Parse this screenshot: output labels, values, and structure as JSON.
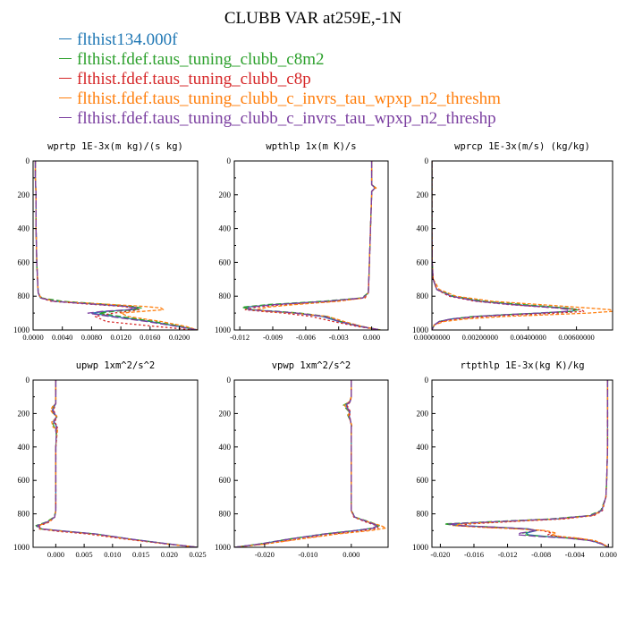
{
  "page": {
    "title": "CLUBB VAR at259E,-1N"
  },
  "legend": [
    {
      "label": "flthist134.000f",
      "color": "#1f77b4"
    },
    {
      "label": "flthist.fdef.taus_tuning_clubb_c8m2",
      "color": "#2ca02c"
    },
    {
      "label": "flthist.fdef.taus_tuning_clubb_c8p",
      "color": "#d62728"
    },
    {
      "label": "flthist.fdef.taus_tuning_clubb_c_invrs_tau_wpxp_n2_threshm",
      "color": "#ff7f0e"
    },
    {
      "label": "flthist.fdef.taus_tuning_clubb_c_invrs_tau_wpxp_n2_threshp",
      "color": "#7b3fa0"
    }
  ],
  "chart_data": [
    {
      "type": "line",
      "title": "wprtp  1E-3x(m kg)/(s kg)",
      "xlim": [
        0.0,
        0.0225
      ],
      "ylim": [
        1000,
        0
      ],
      "xticks": [
        0.0,
        0.004,
        0.008,
        0.012,
        0.016,
        0.02
      ],
      "xtick_labels": [
        "0.0000",
        "0.0040",
        "0.0080",
        "0.0120",
        "0.0160",
        "0.0200"
      ],
      "yticks": [
        0,
        200,
        400,
        600,
        800,
        1000
      ],
      "ytick_labels": [
        "0",
        "200",
        "400",
        "600",
        "800",
        "1000"
      ],
      "y": [
        0,
        100,
        200,
        400,
        600,
        780,
        810,
        830,
        845,
        860,
        870,
        880,
        890,
        900,
        920,
        950,
        980,
        1000
      ],
      "series": [
        {
          "x": [
            0.0003,
            0.0003,
            0.0004,
            0.0004,
            0.0005,
            0.0007,
            0.001,
            0.003,
            0.008,
            0.013,
            0.0145,
            0.0135,
            0.01,
            0.008,
            0.011,
            0.016,
            0.02,
            0.0225
          ]
        },
        {
          "x": [
            0.0003,
            0.0003,
            0.0004,
            0.0004,
            0.0005,
            0.0007,
            0.0012,
            0.004,
            0.009,
            0.0135,
            0.0148,
            0.014,
            0.011,
            0.009,
            0.012,
            0.0165,
            0.0205,
            0.0225
          ]
        },
        {
          "x": [
            0.0003,
            0.0003,
            0.0004,
            0.0004,
            0.0005,
            0.0007,
            0.001,
            0.0025,
            0.007,
            0.012,
            0.014,
            0.0145,
            0.013,
            0.011,
            0.0085,
            0.01,
            0.017,
            0.022
          ]
        },
        {
          "x": [
            0.0003,
            0.0003,
            0.0004,
            0.0004,
            0.0005,
            0.0007,
            0.0011,
            0.003,
            0.009,
            0.015,
            0.0175,
            0.0178,
            0.015,
            0.012,
            0.013,
            0.0175,
            0.021,
            0.0225
          ]
        },
        {
          "x": [
            0.0003,
            0.0003,
            0.0004,
            0.0004,
            0.0005,
            0.0007,
            0.001,
            0.0028,
            0.0075,
            0.0125,
            0.014,
            0.013,
            0.0095,
            0.0075,
            0.0105,
            0.0155,
            0.0198,
            0.0225
          ]
        }
      ]
    },
    {
      "type": "line",
      "title": "wpthlp  1x(m K)/s",
      "xlim": [
        -0.0125,
        0.0015
      ],
      "ylim": [
        1000,
        0
      ],
      "xticks": [
        -0.012,
        -0.009,
        -0.006,
        -0.003,
        0.0
      ],
      "xtick_labels": [
        "-0.012",
        "-0.009",
        "-0.006",
        "-0.003",
        "0.000"
      ],
      "yticks": [
        0,
        200,
        400,
        600,
        800,
        1000
      ],
      "ytick_labels": [
        "0",
        "200",
        "400",
        "600",
        "800",
        "1000"
      ],
      "y": [
        0,
        100,
        140,
        160,
        180,
        200,
        400,
        600,
        780,
        810,
        830,
        850,
        865,
        880,
        890,
        900,
        920,
        950,
        980,
        1000
      ],
      "series": [
        {
          "x": [
            0.0,
            0.0,
            0.0,
            0.0003,
            0.0,
            0.0,
            -0.0001,
            -0.0002,
            -0.0003,
            -0.0008,
            -0.004,
            -0.009,
            -0.0115,
            -0.011,
            -0.009,
            -0.007,
            -0.0045,
            -0.003,
            -0.001,
            0.0008
          ]
        },
        {
          "x": [
            0.0,
            0.0,
            0.0,
            0.0004,
            0.0,
            0.0,
            -0.0001,
            -0.0002,
            -0.0003,
            -0.0009,
            -0.0045,
            -0.0095,
            -0.0118,
            -0.011,
            -0.0085,
            -0.0065,
            -0.004,
            -0.0028,
            -0.0008,
            0.0008
          ]
        },
        {
          "x": [
            0.0,
            0.0,
            0.0,
            0.0003,
            0.0,
            0.0,
            -0.0001,
            -0.0002,
            -0.0003,
            -0.0006,
            -0.0035,
            -0.008,
            -0.0105,
            -0.0115,
            -0.01,
            -0.008,
            -0.0055,
            -0.0035,
            -0.0012,
            0.0008
          ]
        },
        {
          "x": [
            0.0,
            0.0,
            0.0,
            0.0004,
            0.0,
            0.0,
            -0.0001,
            -0.0002,
            -0.0003,
            -0.0007,
            -0.003,
            -0.007,
            -0.0095,
            -0.0105,
            -0.0095,
            -0.007,
            -0.004,
            -0.0025,
            -0.0008,
            0.0008
          ]
        },
        {
          "x": [
            0.0,
            0.0,
            0.0,
            0.0003,
            0.0,
            0.0,
            -0.0001,
            -0.0002,
            -0.0003,
            -0.0008,
            -0.004,
            -0.0088,
            -0.0112,
            -0.0112,
            -0.0088,
            -0.0068,
            -0.0043,
            -0.0029,
            -0.0009,
            0.0008
          ]
        }
      ]
    },
    {
      "type": "line",
      "title": "wprcp  1E-3x(m/s) (kg/kg)",
      "xlim": [
        0.0,
        0.0075
      ],
      "ylim": [
        1000,
        0
      ],
      "xticks": [
        0.0,
        0.002,
        0.004,
        0.006
      ],
      "xtick_labels": [
        "0.00000000",
        "0.00200000",
        "0.00400000",
        "0.00600000"
      ],
      "yticks": [
        0,
        200,
        400,
        600,
        800,
        1000
      ],
      "ytick_labels": [
        "0",
        "200",
        "400",
        "600",
        "800",
        "1000"
      ],
      "y": [
        0,
        200,
        400,
        600,
        700,
        760,
        800,
        830,
        850,
        870,
        880,
        890,
        900,
        910,
        920,
        935,
        950,
        970,
        1000
      ],
      "series": [
        {
          "x": [
            0.0,
            0.0,
            0.0,
            1e-05,
            5e-05,
            0.0002,
            0.0008,
            0.002,
            0.0035,
            0.0055,
            0.006,
            0.0058,
            0.0045,
            0.003,
            0.0018,
            0.0008,
            0.0003,
            0.0001,
            0.0
          ]
        },
        {
          "x": [
            0.0,
            0.0,
            0.0,
            1e-05,
            5e-05,
            0.0002,
            0.0009,
            0.0022,
            0.0038,
            0.0056,
            0.0061,
            0.0057,
            0.0044,
            0.0029,
            0.0017,
            0.0008,
            0.0003,
            0.0001,
            0.0
          ]
        },
        {
          "x": [
            0.0,
            0.0,
            0.0,
            1e-05,
            5e-05,
            0.0002,
            0.0007,
            0.0018,
            0.0032,
            0.0052,
            0.0062,
            0.0063,
            0.0052,
            0.0036,
            0.0022,
            0.001,
            0.0004,
            0.0001,
            0.0
          ]
        },
        {
          "x": [
            0.0,
            0.0,
            0.0,
            1e-05,
            6e-05,
            0.0003,
            0.001,
            0.0025,
            0.0045,
            0.0065,
            0.0074,
            0.0075,
            0.0065,
            0.0048,
            0.003,
            0.0014,
            0.0005,
            0.0001,
            0.0
          ]
        },
        {
          "x": [
            0.0,
            0.0,
            0.0,
            1e-05,
            5e-05,
            0.0002,
            0.0008,
            0.0019,
            0.0033,
            0.0052,
            0.0057,
            0.0056,
            0.0044,
            0.003,
            0.0018,
            0.0008,
            0.0003,
            0.0001,
            0.0
          ]
        }
      ]
    },
    {
      "type": "line",
      "title": "upwp   1xm^2/s^2",
      "xlim": [
        -0.004,
        0.025
      ],
      "ylim": [
        1000,
        0
      ],
      "xticks": [
        0.0,
        0.005,
        0.01,
        0.015,
        0.02,
        0.025
      ],
      "xtick_labels": [
        "0.000",
        "0.005",
        "0.010",
        "0.015",
        "0.020",
        "0.025"
      ],
      "yticks": [
        0,
        200,
        400,
        600,
        800,
        1000
      ],
      "ytick_labels": [
        "0",
        "200",
        "400",
        "600",
        "800",
        "1000"
      ],
      "y": [
        0,
        100,
        140,
        160,
        180,
        200,
        220,
        250,
        280,
        300,
        330,
        400,
        600,
        780,
        820,
        850,
        870,
        890,
        905,
        920,
        950,
        980,
        1000
      ],
      "series": [
        {
          "x": [
            0.0,
            0.0,
            0.0,
            -0.0003,
            -0.0005,
            -0.0002,
            0.0001,
            -0.0003,
            0.0002,
            0.0,
            0.0001,
            0.0,
            0.0,
            0.0,
            -0.0002,
            -0.0015,
            -0.0032,
            -0.0025,
            0.002,
            0.007,
            0.013,
            0.02,
            0.025
          ]
        },
        {
          "x": [
            0.0,
            0.0,
            0.0,
            -0.0005,
            -0.0008,
            -0.0004,
            0.0002,
            -0.0006,
            -0.0003,
            0.0002,
            0.0001,
            0.0,
            0.0,
            0.0,
            -0.0003,
            -0.0018,
            -0.0035,
            -0.0028,
            0.0018,
            0.0068,
            0.0128,
            0.0198,
            0.025
          ]
        },
        {
          "x": [
            0.0,
            0.0,
            0.0,
            -0.0002,
            -0.0004,
            -0.0001,
            0.0002,
            -0.0002,
            0.0003,
            0.0001,
            0.0002,
            0.0,
            0.0,
            0.0,
            -0.0002,
            -0.0012,
            -0.0028,
            -0.003,
            0.0005,
            0.0055,
            0.012,
            0.0195,
            0.025
          ]
        },
        {
          "x": [
            0.0,
            0.0,
            0.0,
            -0.0006,
            -0.0009,
            -0.0005,
            0.0003,
            -0.0007,
            -0.0005,
            0.0003,
            0.0002,
            0.0,
            0.0,
            0.0,
            -0.0002,
            -0.0014,
            -0.003,
            -0.0027,
            0.0015,
            0.0065,
            0.0125,
            0.0197,
            0.025
          ]
        },
        {
          "x": [
            0.0,
            0.0,
            0.0,
            -0.0004,
            -0.0006,
            -0.0003,
            0.0001,
            -0.0004,
            0.0001,
            0.0,
            0.0001,
            0.0,
            0.0,
            0.0,
            -0.0002,
            -0.0016,
            -0.0033,
            -0.0026,
            0.0019,
            0.0069,
            0.0129,
            0.0199,
            0.025
          ]
        }
      ]
    },
    {
      "type": "line",
      "title": "vpwp   1xm^2/s^2",
      "xlim": [
        -0.027,
        0.0085
      ],
      "ylim": [
        1000,
        0
      ],
      "xticks": [
        -0.02,
        -0.01,
        0.0
      ],
      "xtick_labels": [
        "-0.020",
        "-0.010",
        "0.000"
      ],
      "yticks": [
        0,
        200,
        400,
        600,
        800,
        1000
      ],
      "ytick_labels": [
        "0",
        "200",
        "400",
        "600",
        "800",
        "1000"
      ],
      "y": [
        0,
        100,
        130,
        150,
        170,
        190,
        210,
        240,
        270,
        300,
        400,
        600,
        780,
        820,
        850,
        870,
        885,
        900,
        920,
        950,
        980,
        1000
      ],
      "series": [
        {
          "x": [
            0.0,
            0.0,
            -0.0003,
            -0.0012,
            -0.0008,
            -0.0003,
            -0.0005,
            -0.0002,
            0.0,
            0.0,
            0.0,
            0.0,
            0.0,
            0.0008,
            0.004,
            0.006,
            0.005,
            0.001,
            -0.006,
            -0.014,
            -0.021,
            -0.027
          ]
        },
        {
          "x": [
            0.0,
            0.0,
            -0.0004,
            -0.0018,
            -0.0012,
            -0.0005,
            -0.0008,
            -0.0003,
            0.0001,
            0.0,
            0.0,
            0.0,
            0.0,
            0.0009,
            0.0045,
            0.0065,
            0.0052,
            0.0008,
            -0.0062,
            -0.0142,
            -0.0212,
            -0.027
          ]
        },
        {
          "x": [
            0.0,
            0.0,
            -0.0002,
            -0.001,
            -0.0006,
            -0.0002,
            -0.0004,
            -0.0002,
            0.0,
            0.0,
            0.0,
            0.0,
            0.0,
            0.0006,
            0.0035,
            0.0058,
            0.0062,
            0.003,
            -0.004,
            -0.012,
            -0.02,
            -0.027
          ]
        },
        {
          "x": [
            0.0,
            0.0,
            -0.0005,
            -0.0016,
            -0.001,
            -0.0004,
            -0.0007,
            -0.0003,
            0.0001,
            0.0,
            0.0,
            0.0,
            0.0,
            0.0007,
            0.0042,
            0.0068,
            0.008,
            0.0045,
            -0.003,
            -0.0115,
            -0.0198,
            -0.027
          ]
        },
        {
          "x": [
            0.0,
            0.0,
            -0.0003,
            -0.0013,
            -0.0009,
            -0.0004,
            -0.0006,
            -0.0002,
            0.0,
            0.0,
            0.0,
            0.0,
            0.0,
            0.0008,
            0.0041,
            0.0061,
            0.0051,
            0.0009,
            -0.0061,
            -0.0141,
            -0.0211,
            -0.027
          ]
        }
      ]
    },
    {
      "type": "line",
      "title": "rtpthlp   1E-3x(kg K)/kg",
      "xlim": [
        -0.021,
        0.0005
      ],
      "ylim": [
        1000,
        0
      ],
      "xticks": [
        -0.02,
        -0.016,
        -0.012,
        -0.008,
        -0.004,
        0.0
      ],
      "xtick_labels": [
        "-0.020",
        "-0.016",
        "-0.012",
        "-0.008",
        "-0.004",
        "0.000"
      ],
      "yticks": [
        0,
        200,
        400,
        600,
        800,
        1000
      ],
      "ytick_labels": [
        "0",
        "200",
        "400",
        "600",
        "800",
        "1000"
      ],
      "y": [
        0,
        200,
        400,
        600,
        700,
        780,
        810,
        830,
        845,
        860,
        870,
        880,
        890,
        900,
        915,
        925,
        935,
        945,
        960,
        980,
        1000
      ],
      "series": [
        {
          "x": [
            -0.0001,
            -0.0001,
            -0.0001,
            -0.0002,
            -0.0003,
            -0.0008,
            -0.002,
            -0.006,
            -0.012,
            -0.0185,
            -0.0178,
            -0.013,
            -0.0095,
            -0.0085,
            -0.0098,
            -0.0095,
            -0.0075,
            -0.0045,
            -0.002,
            -0.0008,
            0.0
          ]
        },
        {
          "x": [
            -0.0001,
            -0.0001,
            -0.0001,
            -0.0002,
            -0.0003,
            -0.0009,
            -0.0023,
            -0.0068,
            -0.0132,
            -0.0195,
            -0.0182,
            -0.0132,
            -0.0097,
            -0.0088,
            -0.0102,
            -0.01,
            -0.0078,
            -0.0047,
            -0.0021,
            -0.0008,
            0.0
          ]
        },
        {
          "x": [
            -0.0001,
            -0.0001,
            -0.0001,
            -0.0002,
            -0.0003,
            -0.0007,
            -0.0017,
            -0.0052,
            -0.011,
            -0.0165,
            -0.0178,
            -0.0148,
            -0.0105,
            -0.0078,
            -0.0068,
            -0.0072,
            -0.006,
            -0.0038,
            -0.0017,
            -0.0007,
            0.0
          ]
        },
        {
          "x": [
            -0.0001,
            -0.0001,
            -0.0001,
            -0.0002,
            -0.0003,
            -0.0008,
            -0.0019,
            -0.0058,
            -0.0118,
            -0.0175,
            -0.0185,
            -0.0152,
            -0.0108,
            -0.0075,
            -0.0062,
            -0.0068,
            -0.0058,
            -0.0037,
            -0.0016,
            -0.0006,
            0.0
          ]
        },
        {
          "x": [
            -0.0001,
            -0.0001,
            -0.0001,
            -0.0002,
            -0.0003,
            -0.0008,
            -0.0021,
            -0.0064,
            -0.0126,
            -0.019,
            -0.0181,
            -0.0131,
            -0.0096,
            -0.0086,
            -0.0105,
            -0.0108,
            -0.0085,
            -0.005,
            -0.0022,
            -0.0008,
            0.0
          ]
        }
      ]
    }
  ]
}
